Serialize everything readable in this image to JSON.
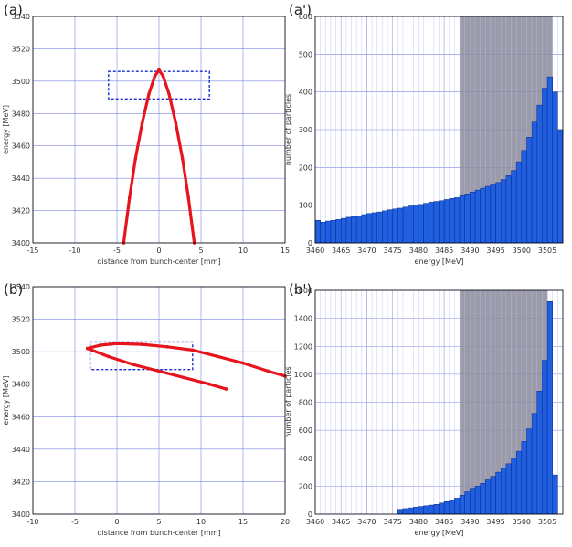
{
  "chart_data": [
    {
      "panel": "(a)",
      "type": "scatter",
      "title": "",
      "xlabel": "distance from bunch-center [mm]",
      "ylabel": "energy [MeV]",
      "xlim": [
        -15,
        15
      ],
      "ylim": [
        3400,
        3540
      ],
      "xticks": [
        -15,
        -10,
        -5,
        0,
        5,
        10,
        15
      ],
      "yticks": [
        3400,
        3420,
        3440,
        3460,
        3480,
        3500,
        3520,
        3540
      ],
      "grid": true,
      "series": [
        {
          "color": "#e8141b",
          "shape": "parabolic arc",
          "x": [
            -4.2,
            -3.5,
            -2.8,
            -2.0,
            -1.2,
            -0.5,
            0.0,
            0.5,
            1.2,
            2.0,
            2.8,
            3.5,
            4.2
          ],
          "y": [
            3400,
            3428,
            3452,
            3474,
            3492,
            3503,
            3507,
            3503,
            3492,
            3474,
            3452,
            3428,
            3400
          ]
        }
      ],
      "selection_box": {
        "x": [
          -6,
          6
        ],
        "y": [
          3489,
          3506
        ],
        "color": "#1a2fd0",
        "style": "dashed"
      }
    },
    {
      "panel": "(a')",
      "type": "bar",
      "title": "",
      "xlabel": "energy [MeV]",
      "ylabel": "number of particles",
      "xlim": [
        3460,
        3508
      ],
      "ylim": [
        0,
        600
      ],
      "xticks": [
        3460,
        3465,
        3470,
        3475,
        3480,
        3485,
        3490,
        3495,
        3500,
        3505
      ],
      "yticks": [
        0,
        100,
        200,
        300,
        400,
        500,
        600
      ],
      "grid": true,
      "bar_color": "#1f5fe0",
      "bin_width": 1,
      "bin_start": 3460,
      "values": [
        60,
        55,
        58,
        60,
        62,
        65,
        68,
        70,
        72,
        75,
        78,
        80,
        82,
        85,
        88,
        90,
        92,
        95,
        98,
        100,
        102,
        105,
        108,
        110,
        112,
        115,
        118,
        120,
        125,
        130,
        135,
        140,
        145,
        150,
        155,
        160,
        168,
        178,
        192,
        215,
        245,
        280,
        320,
        365,
        410,
        440,
        400,
        300
      ],
      "shaded_range": [
        3488,
        3506
      ],
      "shade_color": "#8a8a9a"
    },
    {
      "panel": "(b)",
      "type": "scatter",
      "title": "",
      "xlabel": "distance from bunch-center [mm]",
      "ylabel": "energy [MeV]",
      "xlim": [
        -10,
        20
      ],
      "ylim": [
        3400,
        3540
      ],
      "xticks": [
        -10,
        -5,
        0,
        5,
        10,
        15,
        20
      ],
      "yticks": [
        3400,
        3420,
        3440,
        3460,
        3480,
        3500,
        3520,
        3540
      ],
      "grid": true,
      "series": [
        {
          "color": "#e8141b",
          "shape": "upper tail",
          "x": [
            -3.5,
            -2,
            0,
            3,
            6,
            9,
            12,
            15,
            18,
            20
          ],
          "y": [
            3502,
            3504,
            3505,
            3504.5,
            3503,
            3501,
            3497,
            3493,
            3488,
            3485
          ]
        },
        {
          "color": "#e8141b",
          "shape": "lower tail",
          "x": [
            -3.5,
            -1,
            2,
            5,
            8,
            11,
            13
          ],
          "y": [
            3502,
            3497,
            3492,
            3488,
            3484,
            3480,
            3477
          ]
        }
      ],
      "selection_box": {
        "x": [
          -3.2,
          9
        ],
        "y": [
          3489,
          3506
        ],
        "color": "#1a2fd0",
        "style": "dashed"
      }
    },
    {
      "panel": "(b')",
      "type": "bar",
      "title": "",
      "xlabel": "energy [MeV]",
      "ylabel": "number of particles",
      "xlim": [
        3460,
        3508
      ],
      "ylim": [
        0,
        1600
      ],
      "xticks": [
        3460,
        3465,
        3470,
        3475,
        3480,
        3485,
        3490,
        3495,
        3500,
        3505
      ],
      "yticks": [
        0,
        200,
        400,
        600,
        800,
        1000,
        1200,
        1400,
        1600
      ],
      "grid": true,
      "bar_color": "#1f5fe0",
      "bin_width": 1,
      "bin_start": 3460,
      "values": [
        0,
        0,
        0,
        0,
        0,
        0,
        0,
        0,
        0,
        0,
        0,
        0,
        0,
        0,
        0,
        0,
        35,
        40,
        45,
        50,
        55,
        60,
        65,
        70,
        80,
        90,
        100,
        115,
        135,
        160,
        185,
        200,
        220,
        245,
        270,
        300,
        330,
        360,
        400,
        450,
        520,
        610,
        720,
        880,
        1100,
        1520,
        280,
        0
      ],
      "shaded_range": [
        3488,
        3505
      ],
      "shade_color": "#8a8a9a"
    }
  ]
}
